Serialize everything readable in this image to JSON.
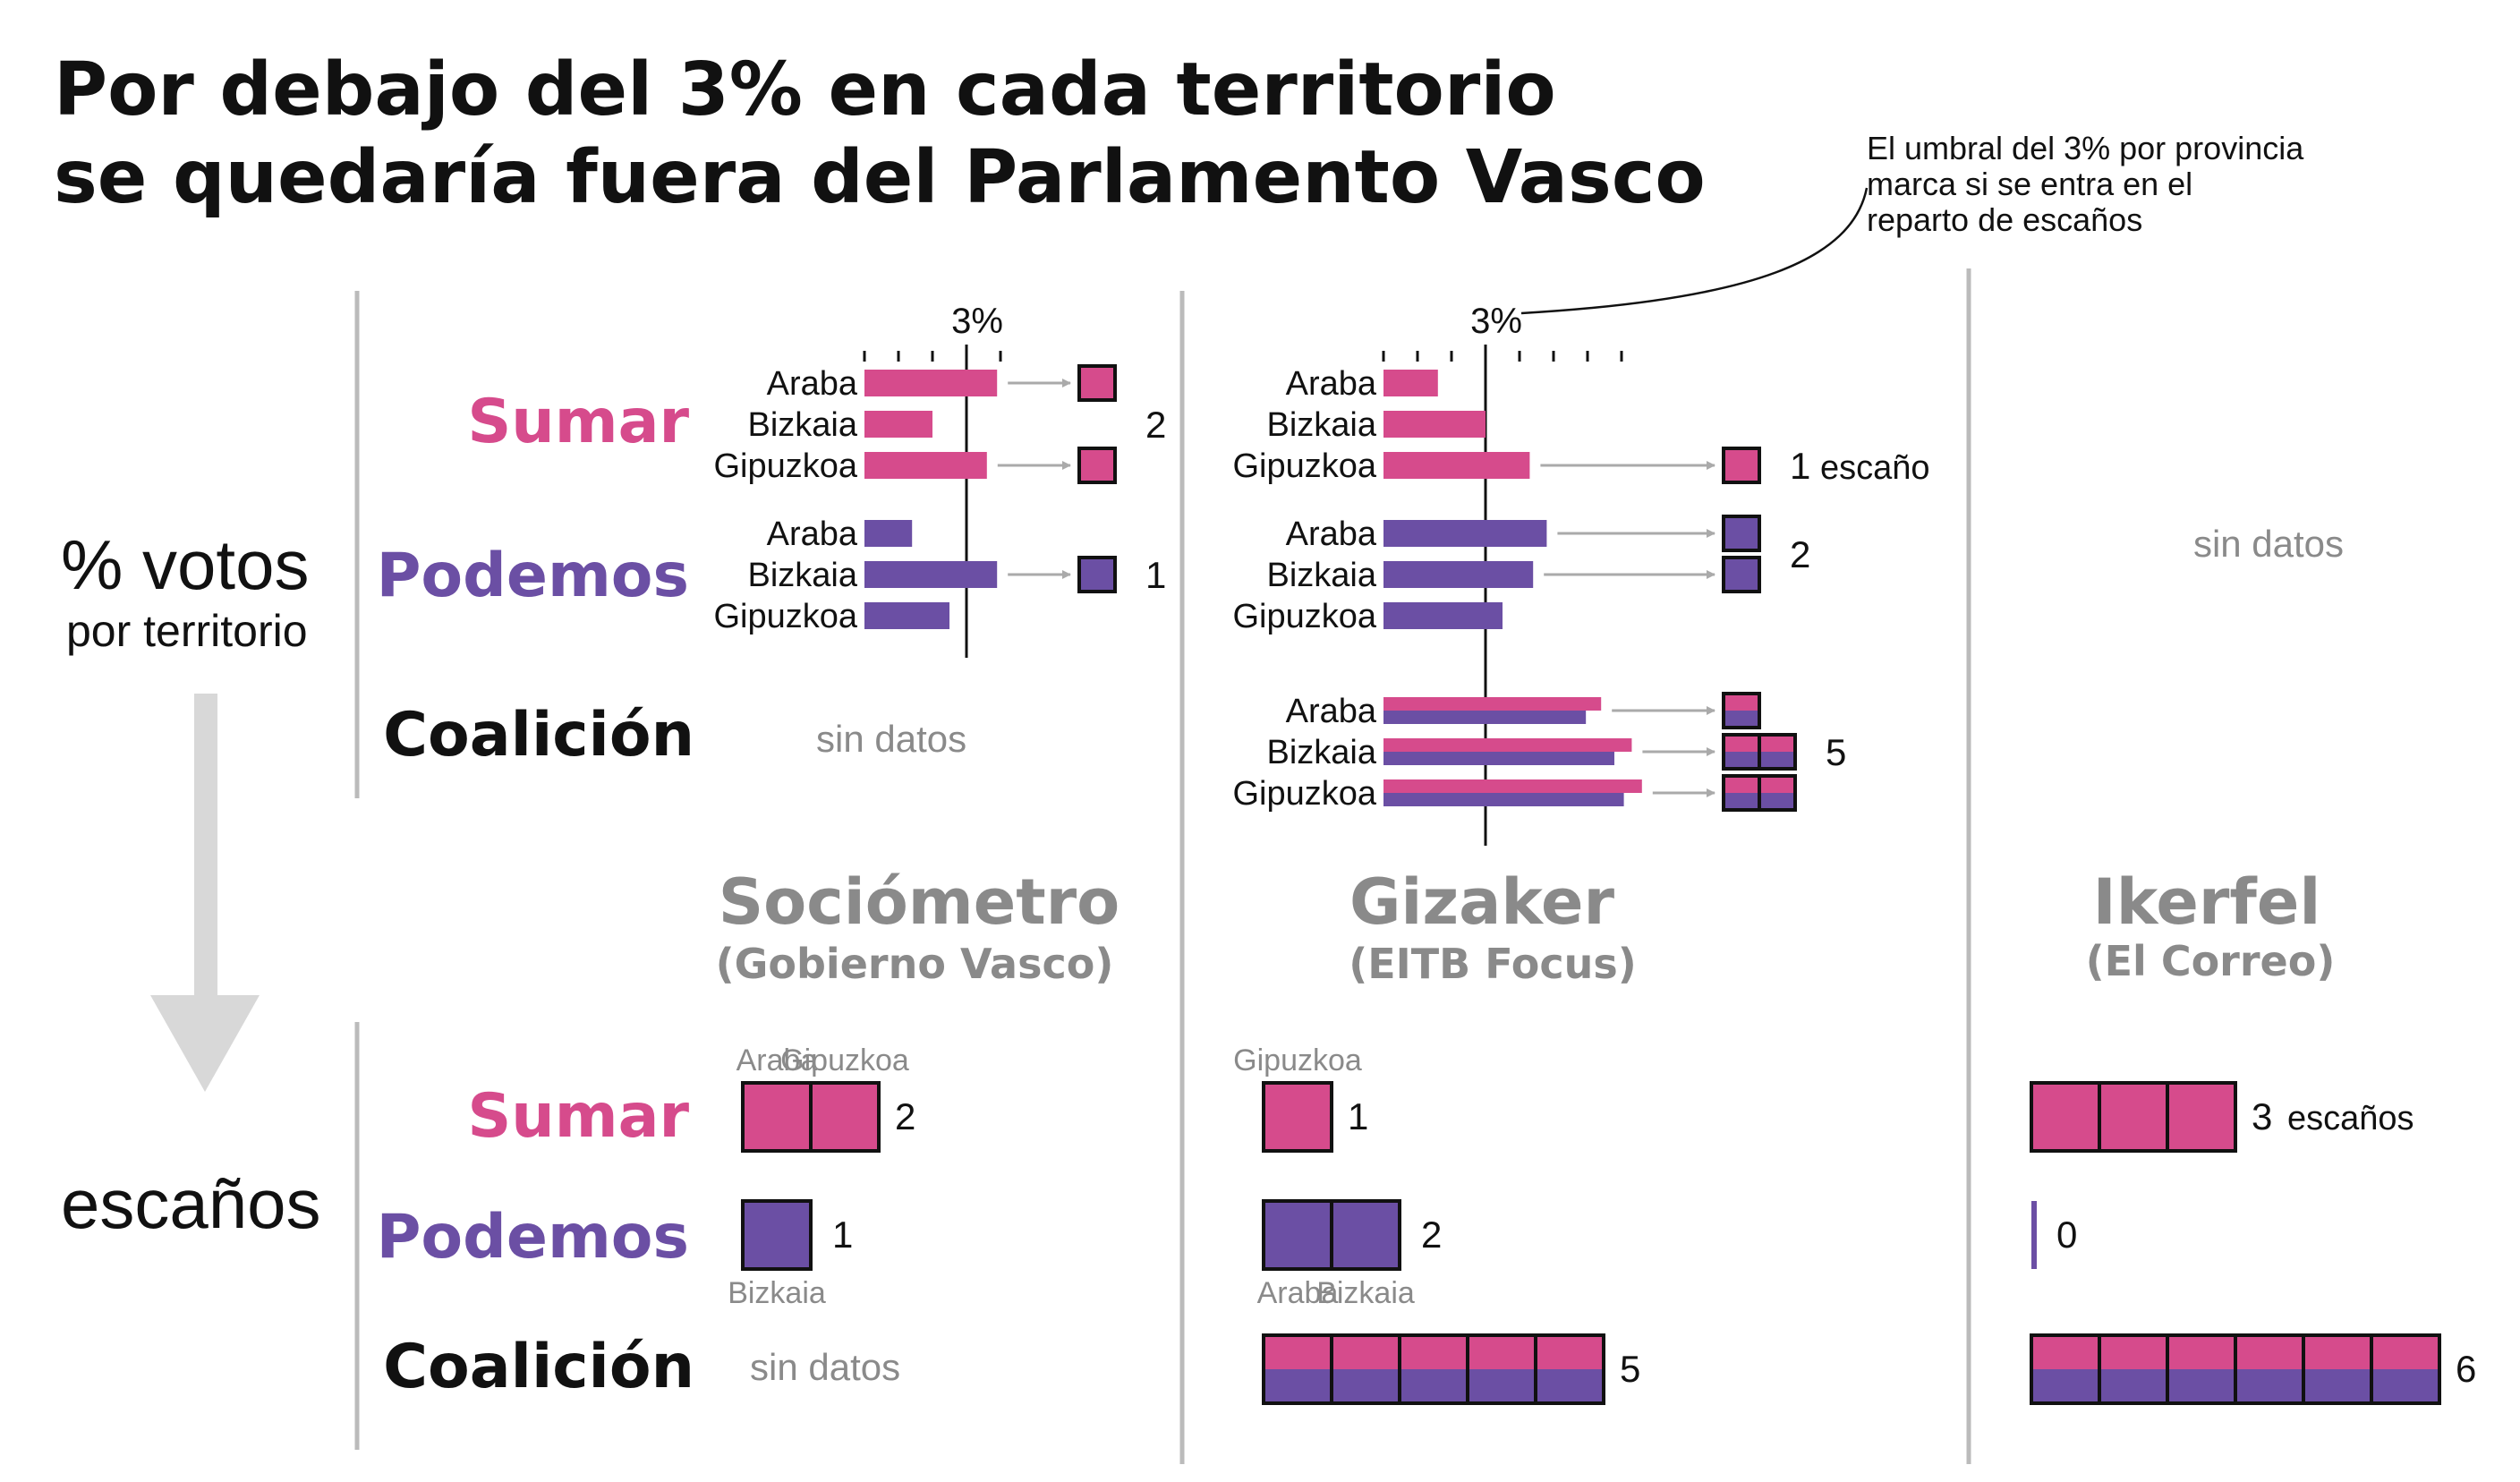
{
  "title_line1": "Por debajo del 3% en cada territorio",
  "title_line2": "se quedaría fuera del Parlamento Vasco",
  "note_lines": [
    "El umbral del 3% por provincia",
    "marca si se entra en el",
    "reparto de escaños"
  ],
  "side_labels": {
    "votes_main": "% votos",
    "votes_sub": "por territorio",
    "seats": "escaños"
  },
  "threshold_label": "3%",
  "no_data": "sin datos",
  "colors": {
    "sumar": "#d64b8c",
    "podemos": "#6b4fa4",
    "grey": "#8a8a8a",
    "divider": "#bbbbbb",
    "arrow": "#d8d8d8"
  },
  "pollsters": [
    {
      "name": "Sociómetro",
      "medium": "(Gobierno Vasco)"
    },
    {
      "name": "Gizaker",
      "medium": "(EITB Focus)"
    },
    {
      "name": "Ikerfel",
      "medium": "(El Correo)"
    }
  ],
  "chart_data": {
    "type": "bar",
    "threshold_percent": 3,
    "parties": [
      "Sumar",
      "Podemos",
      "Coalición"
    ],
    "provinces": [
      "Araba",
      "Bizkaia",
      "Gipuzkoa"
    ],
    "votes": [
      {
        "pollster": "Sociómetro",
        "x_axis_percent": [
          0,
          4
        ],
        "groups": [
          {
            "party": "Sumar",
            "values": [
              3.9,
              2.0,
              3.6
            ],
            "seats": [
              1,
              0,
              1
            ],
            "total": "2"
          },
          {
            "party": "Podemos",
            "values": [
              1.4,
              3.9,
              2.5
            ],
            "seats": [
              0,
              1,
              0
            ],
            "total": "1"
          }
        ],
        "coalicion": null
      },
      {
        "pollster": "Gizaker",
        "x_axis_percent": [
          0,
          7
        ],
        "groups": [
          {
            "party": "Sumar",
            "values": [
              1.6,
              3.0,
              4.3
            ],
            "seats": [
              0,
              0,
              1
            ],
            "total": "1",
            "total_unit": "escaño"
          },
          {
            "party": "Podemos",
            "values": [
              4.8,
              4.4,
              3.5
            ],
            "seats": [
              1,
              1,
              0
            ],
            "total": "2"
          },
          {
            "party": "Coalición",
            "values": [
              6.4,
              7.3,
              7.6
            ],
            "seats": [
              1,
              2,
              2
            ],
            "total": "5"
          }
        ]
      },
      {
        "pollster": "Ikerfel",
        "votes": null
      }
    ],
    "seats": [
      {
        "pollster": "Sociómetro",
        "sumar": 2,
        "sumar_label": "2",
        "sumar_provinces": [
          "Araba",
          "Gipuzkoa"
        ],
        "podemos": 1,
        "podemos_label": "1",
        "podemos_provinces": [
          "Bizkaia"
        ],
        "coalicion": null
      },
      {
        "pollster": "Gizaker",
        "sumar": 1,
        "sumar_label": "1",
        "sumar_provinces": [
          "Gipuzkoa"
        ],
        "podemos": 2,
        "podemos_label": "2",
        "podemos_provinces": [
          "Araba",
          "Bizkaia"
        ],
        "coalicion": 5,
        "coalicion_label": "5"
      },
      {
        "pollster": "Ikerfel",
        "sumar": 3,
        "sumar_label": "3",
        "sumar_unit": "escaños",
        "podemos": 0,
        "podemos_label": "0",
        "coalicion": 6,
        "coalicion_label": "6"
      }
    ]
  }
}
